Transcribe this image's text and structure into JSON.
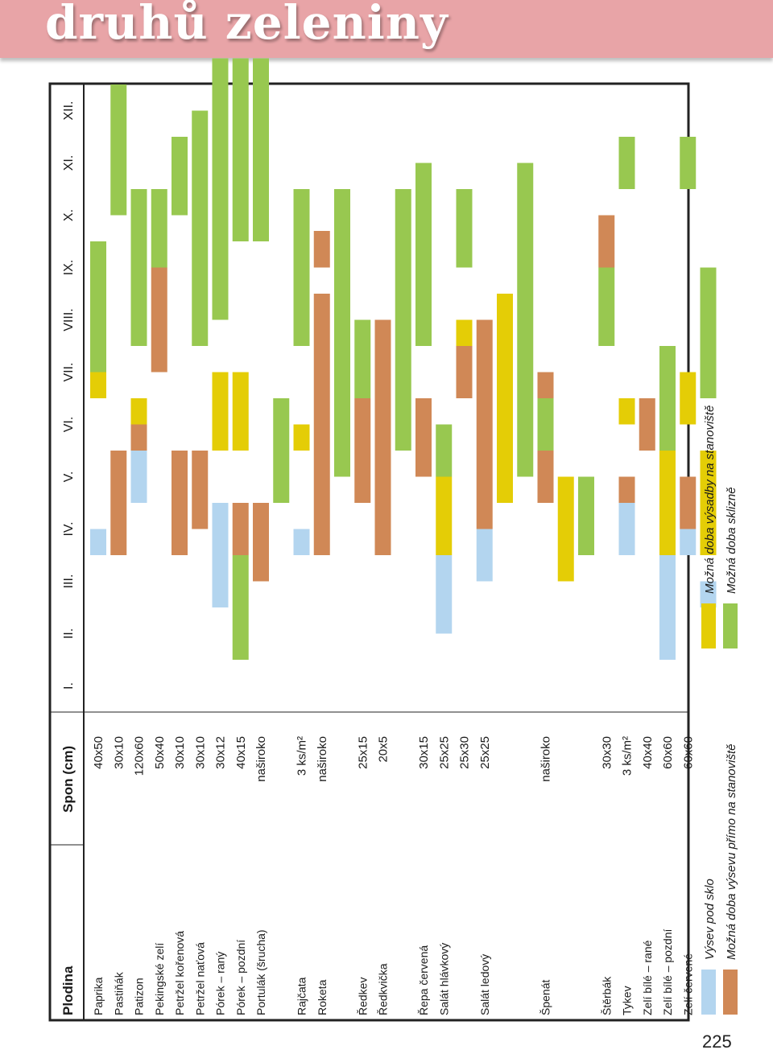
{
  "banner": {
    "title": "druhů zeleniny"
  },
  "page_number": "225",
  "chart_data": {
    "type": "table",
    "headers": {
      "crop": "Plodina",
      "spacing": "Spon (cm)"
    },
    "months": [
      "I.",
      "II.",
      "III.",
      "IV.",
      "V.",
      "VI.",
      "VII.",
      "VIII.",
      "IX.",
      "X.",
      "XI.",
      "XII."
    ],
    "colors": {
      "blue": "#b3d5ef",
      "brown": "#d08856",
      "yellow": "#e4cd06",
      "green": "#98c850"
    },
    "legend": {
      "blue": "Výsev pod sklo",
      "brown": "Možná doba výsevu přímo na stanoviště",
      "yellow": "Možná doba výsadby na stanoviště",
      "green": "Možná doba sklizně"
    },
    "rows": [
      {
        "crop": "Paprika",
        "spacing": "40x50",
        "bars": [
          [
            "blue",
            3,
            3.5
          ],
          [
            "yellow",
            6,
            6.5
          ],
          [
            "green",
            6.5,
            9
          ]
        ]
      },
      {
        "crop": "Pastiňák",
        "spacing": "30x10",
        "bars": [
          [
            "brown",
            3,
            5
          ],
          [
            "green",
            9.5,
            12
          ]
        ]
      },
      {
        "crop": "Patizon",
        "spacing": "120x60",
        "bars": [
          [
            "blue",
            4,
            5
          ],
          [
            "brown",
            5,
            5.5
          ],
          [
            "yellow",
            5.5,
            6
          ],
          [
            "green",
            7,
            10
          ]
        ]
      },
      {
        "crop": "Pekingské zelí",
        "spacing": "50x40",
        "bars": [
          [
            "brown",
            6.5,
            8.5
          ],
          [
            "green",
            8.5,
            10
          ]
        ]
      },
      {
        "crop": "Petržel kořenová",
        "spacing": "30x10",
        "bars": [
          [
            "brown",
            3,
            5
          ],
          [
            "green",
            9.5,
            11
          ]
        ]
      },
      {
        "crop": "Petržel naťová",
        "spacing": "30x10",
        "bars": [
          [
            "brown",
            3.5,
            5
          ],
          [
            "green",
            7,
            11.5
          ]
        ]
      },
      {
        "crop": "Pórek – raný",
        "spacing": "30x12",
        "bars": [
          [
            "blue",
            2,
            4
          ],
          [
            "yellow",
            5,
            6.5
          ],
          [
            "green",
            7.5,
            12.5
          ]
        ]
      },
      {
        "crop": "Pórek – pozdní",
        "spacing": "40x15",
        "bars": [
          [
            "green",
            1,
            3
          ],
          [
            "brown",
            3,
            4
          ],
          [
            "yellow",
            5,
            6.5
          ],
          [
            "green",
            9,
            12.5
          ]
        ]
      },
      {
        "crop": "Portulák (šrucha)",
        "spacing": "naširoko",
        "bars": [
          [
            "brown",
            2.5,
            4
          ],
          [
            "green",
            9,
            12.5
          ]
        ]
      },
      {
        "crop": "",
        "spacing": "",
        "bars": [
          [
            "green",
            4,
            6
          ]
        ]
      },
      {
        "crop": "Rajčata",
        "spacing": "3 ks/m²",
        "bars": [
          [
            "blue",
            3,
            3.5
          ],
          [
            "yellow",
            5,
            5.5
          ],
          [
            "green",
            7,
            10
          ]
        ]
      },
      {
        "crop": "Roketa",
        "spacing": "naširoko",
        "bars": [
          [
            "brown",
            3,
            8
          ],
          [
            "brown",
            8.5,
            9.2
          ]
        ]
      },
      {
        "crop": "",
        "spacing": "",
        "bars": [
          [
            "green",
            4.5,
            10
          ]
        ]
      },
      {
        "crop": "Ředkev",
        "spacing": "25x15",
        "bars": [
          [
            "brown",
            4,
            6
          ],
          [
            "green",
            6,
            7.5
          ]
        ]
      },
      {
        "crop": "Ředkvička",
        "spacing": "20x5",
        "bars": [
          [
            "brown",
            3,
            7.5
          ]
        ]
      },
      {
        "crop": "",
        "spacing": "",
        "bars": [
          [
            "green",
            5,
            10
          ]
        ]
      },
      {
        "crop": "Řepa červená",
        "spacing": "30x15",
        "bars": [
          [
            "brown",
            4.5,
            6
          ],
          [
            "green",
            7,
            10.5
          ]
        ]
      },
      {
        "crop": "Salát hlávkový",
        "spacing": "25x25",
        "bars": [
          [
            "blue",
            1.5,
            3
          ],
          [
            "yellow",
            3,
            4.5
          ],
          [
            "green",
            4.5,
            5.5
          ]
        ]
      },
      {
        "crop": "",
        "spacing": "25x30",
        "bars": [
          [
            "brown",
            6,
            7
          ],
          [
            "yellow",
            7,
            7.5
          ],
          [
            "green",
            8.5,
            10
          ]
        ]
      },
      {
        "crop": "Salát ledový",
        "spacing": "25x25",
        "bars": [
          [
            "blue",
            2.5,
            3.5
          ],
          [
            "brown",
            3.5,
            7.5
          ]
        ]
      },
      {
        "crop": "",
        "spacing": "",
        "bars": [
          [
            "yellow",
            4,
            8
          ]
        ]
      },
      {
        "crop": "",
        "spacing": "",
        "bars": [
          [
            "green",
            4.5,
            10.5
          ]
        ]
      },
      {
        "crop": "Špenát",
        "spacing": "naširoko",
        "bars": [
          [
            "brown",
            4,
            6.5
          ],
          [
            "green",
            5,
            6
          ]
        ]
      },
      {
        "crop": "",
        "spacing": "",
        "bars": [
          [
            "yellow",
            2.5,
            4.5
          ]
        ]
      },
      {
        "crop": "",
        "spacing": "",
        "bars": [
          [
            "green",
            3,
            4.5
          ]
        ]
      },
      {
        "crop": "Štěrbák",
        "spacing": "30x30",
        "bars": [
          [
            "brown",
            8.5,
            9.5
          ],
          [
            "green",
            7,
            8.5
          ]
        ]
      },
      {
        "crop": "Tykev",
        "spacing": "3 ks/m²",
        "bars": [
          [
            "blue",
            3,
            4
          ],
          [
            "brown",
            4,
            4.5
          ],
          [
            "yellow",
            5.5,
            6
          ],
          [
            "green",
            10,
            11
          ]
        ]
      },
      {
        "crop": "Zelí bílé – rané",
        "spacing": "40x40",
        "bars": [
          [
            "brown",
            5,
            6
          ],
          [
            "green",
            0,
            0
          ]
        ]
      },
      {
        "crop": "Zelí bílé – pozdní",
        "spacing": "60x60",
        "bars": [
          [
            "blue",
            1,
            3
          ],
          [
            "yellow",
            3,
            5
          ],
          [
            "green",
            5,
            7
          ]
        ]
      },
      {
        "crop": "Zelí červené",
        "spacing": "60x60",
        "bars": [
          [
            "blue",
            3,
            3.5
          ],
          [
            "brown",
            3.5,
            4.5
          ],
          [
            "yellow",
            5.5,
            6.5
          ],
          [
            "green",
            10,
            11
          ]
        ]
      },
      {
        "crop": "",
        "spacing": "",
        "bars": [
          [
            "blue",
            2,
            2.5
          ],
          [
            "yellow",
            3,
            5
          ],
          [
            "green",
            6,
            8.5
          ]
        ]
      }
    ]
  }
}
